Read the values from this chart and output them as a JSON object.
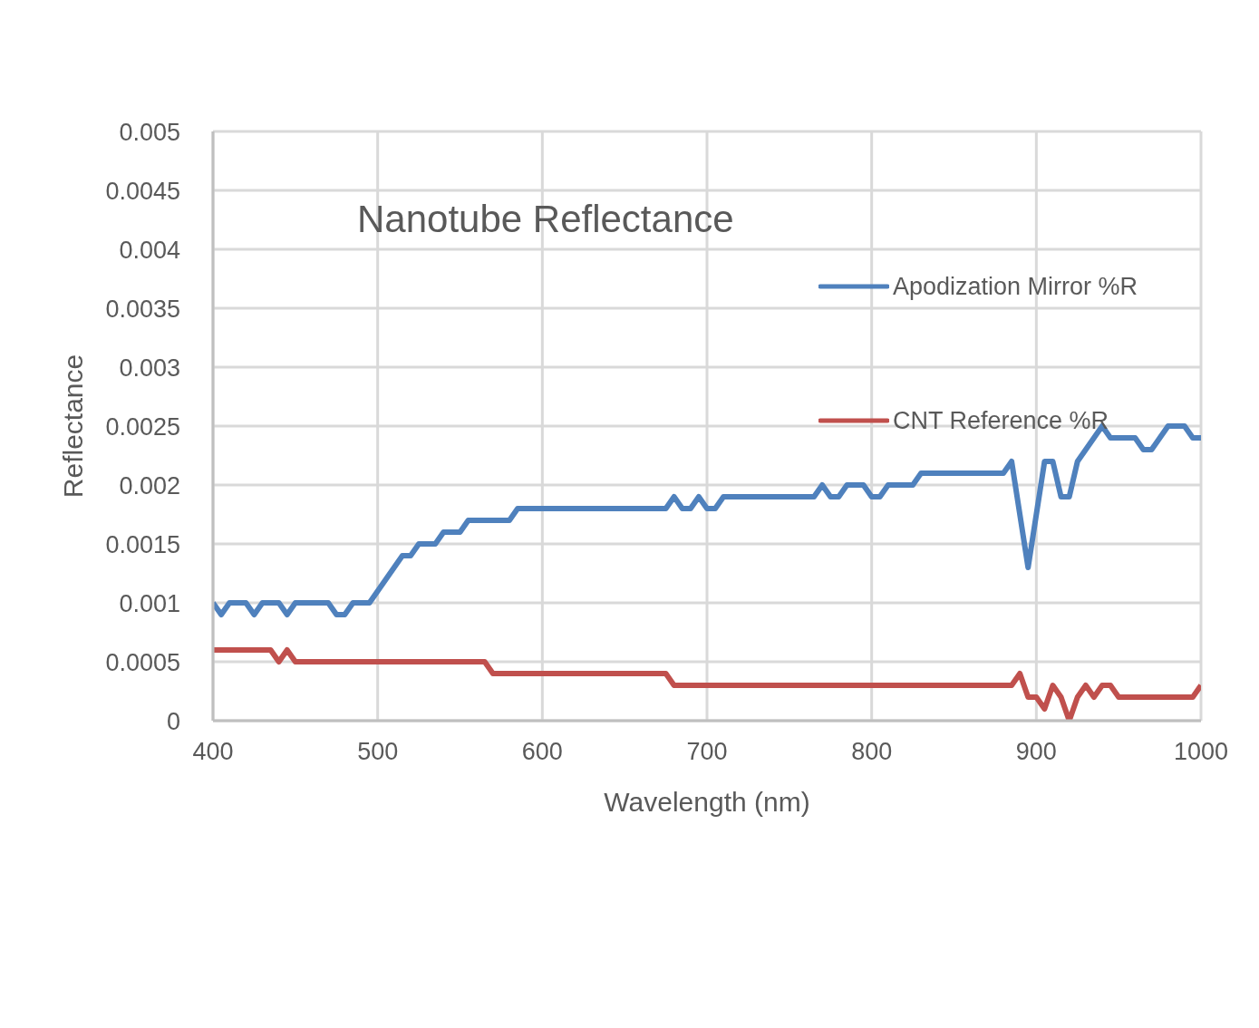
{
  "chart_data": {
    "type": "line",
    "title": "Nanotube Reflectance",
    "xlabel": "Wavelength (nm)",
    "ylabel": "Reflectance",
    "xlim": [
      400,
      1000
    ],
    "xticks": [
      400,
      500,
      600,
      700,
      800,
      900,
      1000
    ],
    "ylim": [
      0,
      0.005
    ],
    "yticks": [
      0,
      0.0005,
      0.001,
      0.0015,
      0.002,
      0.0025,
      0.003,
      0.0035,
      0.004,
      0.0045,
      0.005
    ],
    "grid": true,
    "legend": "top right",
    "line_style": "solid",
    "marker": "none",
    "series": [
      {
        "name": "Apodization Mirror %R",
        "color": "#4f81bd",
        "x": [
          400,
          405,
          410,
          420,
          425,
          430,
          440,
          445,
          450,
          470,
          475,
          480,
          485,
          495,
          500,
          505,
          510,
          515,
          520,
          525,
          535,
          540,
          550,
          555,
          580,
          585,
          675,
          680,
          685,
          690,
          695,
          700,
          705,
          710,
          765,
          770,
          775,
          780,
          785,
          795,
          800,
          805,
          810,
          825,
          830,
          880,
          885,
          895,
          905,
          910,
          915,
          920,
          925,
          930,
          935,
          940,
          945,
          960,
          965,
          970,
          975,
          980,
          990,
          995,
          1000
        ],
        "values": [
          0.001,
          0.0009,
          0.001,
          0.001,
          0.0009,
          0.001,
          0.001,
          0.0009,
          0.001,
          0.001,
          0.0009,
          0.0009,
          0.001,
          0.001,
          0.0011,
          0.0012,
          0.0013,
          0.0014,
          0.0014,
          0.0015,
          0.0015,
          0.0016,
          0.0016,
          0.0017,
          0.0017,
          0.0018,
          0.0018,
          0.0019,
          0.0018,
          0.0018,
          0.0019,
          0.0018,
          0.0018,
          0.0019,
          0.0019,
          0.002,
          0.0019,
          0.0019,
          0.002,
          0.002,
          0.0019,
          0.0019,
          0.002,
          0.002,
          0.0021,
          0.0021,
          0.0022,
          0.0013,
          0.0022,
          0.0022,
          0.0019,
          0.0019,
          0.0022,
          0.0023,
          0.0024,
          0.0025,
          0.0024,
          0.0024,
          0.0023,
          0.0023,
          0.0024,
          0.0025,
          0.0025,
          0.0024,
          0.0024
        ]
      },
      {
        "name": "CNT Reference %R",
        "color": "#c0504d",
        "x": [
          400,
          435,
          440,
          445,
          450,
          565,
          570,
          675,
          680,
          885,
          890,
          895,
          900,
          905,
          910,
          915,
          920,
          925,
          930,
          935,
          940,
          945,
          950,
          995,
          1000
        ],
        "values": [
          0.0006,
          0.0006,
          0.0005,
          0.0006,
          0.0005,
          0.0005,
          0.0004,
          0.0004,
          0.0003,
          0.0003,
          0.0004,
          0.0002,
          0.0002,
          0.0001,
          0.0003,
          0.0002,
          0,
          0.0002,
          0.0003,
          0.0002,
          0.0003,
          0.0003,
          0.0002,
          0.0002,
          0.0003
        ]
      }
    ]
  }
}
